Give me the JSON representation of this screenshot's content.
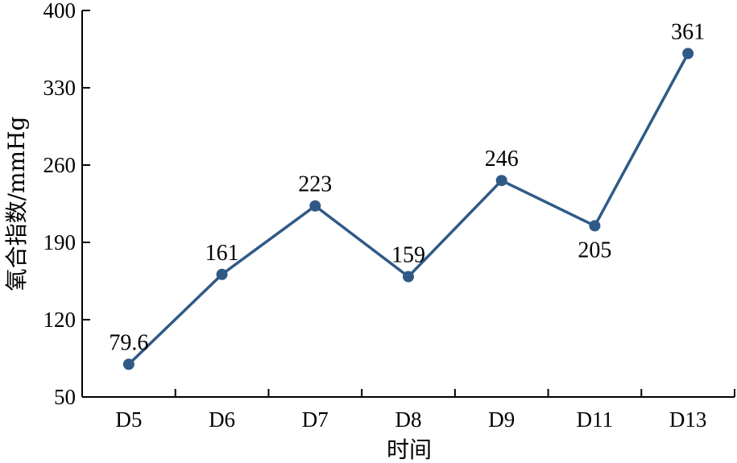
{
  "chart_data": {
    "type": "line",
    "title": "",
    "xlabel": "时间",
    "ylabel": "氧合指数/mmHg",
    "categories": [
      "D5",
      "D6",
      "D7",
      "D8",
      "D9",
      "D11",
      "D13"
    ],
    "series": [
      {
        "values": [
          79.6,
          161,
          223,
          159,
          246,
          205,
          361
        ]
      }
    ],
    "data_labels": [
      "79.6",
      "161",
      "223",
      "159",
      "246",
      "205",
      "361"
    ],
    "ylim": [
      50,
      400
    ],
    "yticks": [
      50,
      120,
      190,
      260,
      330,
      400
    ],
    "grid": false,
    "legend": "none",
    "series_color": "#2f5a86"
  }
}
